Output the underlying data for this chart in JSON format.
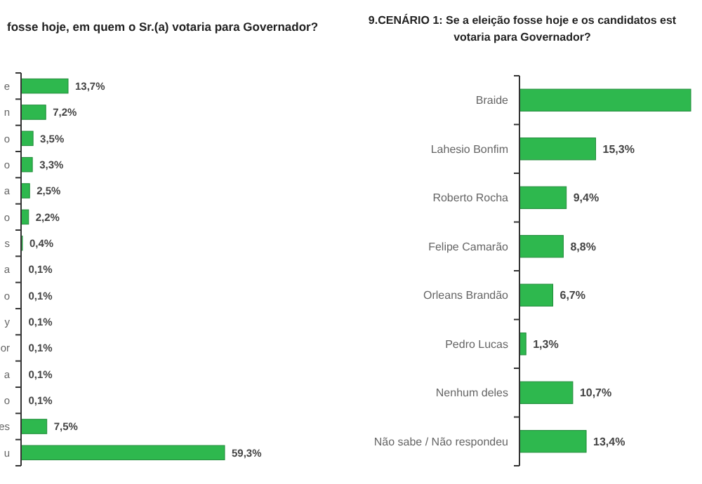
{
  "chart_data": [
    {
      "type": "bar",
      "orientation": "horizontal",
      "title": "fosse hoje, em quem o Sr.(a) votaria para Governador?",
      "color": "#2eb84e",
      "categories": [
        "e",
        "n",
        "o",
        "o",
        "a",
        "o",
        "s",
        "a",
        "o",
        "y",
        "or",
        "a",
        "o",
        "es",
        "u"
      ],
      "values": [
        13.7,
        7.2,
        3.5,
        3.3,
        2.5,
        2.2,
        0.4,
        0.1,
        0.1,
        0.1,
        0.1,
        0.1,
        0.1,
        7.5,
        59.3
      ],
      "value_labels": [
        "13,7%",
        "7,2%",
        "3,5%",
        "3,3%",
        "2,5%",
        "2,2%",
        "0,4%",
        "0,1%",
        "0,1%",
        "0,1%",
        "0,1%",
        "0,1%",
        "0,1%",
        "7,5%",
        "59,3%"
      ]
    },
    {
      "type": "bar",
      "orientation": "horizontal",
      "title": "9.CENÁRIO 1: Se a eleição fosse hoje e os candidatos est\nvotaria para Governador?",
      "color": "#2eb84e",
      "categories": [
        "Braide",
        "Lahesio Bonfim",
        "Roberto Rocha",
        "Felipe Camarão",
        "Orleans Brandão",
        "Pedro Lucas",
        "Nenhum deles",
        "Não sabe / Não respondeu"
      ],
      "values": [
        34.4,
        15.3,
        9.4,
        8.8,
        6.7,
        1.3,
        10.7,
        13.4
      ],
      "value_labels": [
        null,
        "15,3%",
        "9,4%",
        "8,8%",
        "6,7%",
        "1,3%",
        "10,7%",
        "13,4%"
      ]
    }
  ]
}
